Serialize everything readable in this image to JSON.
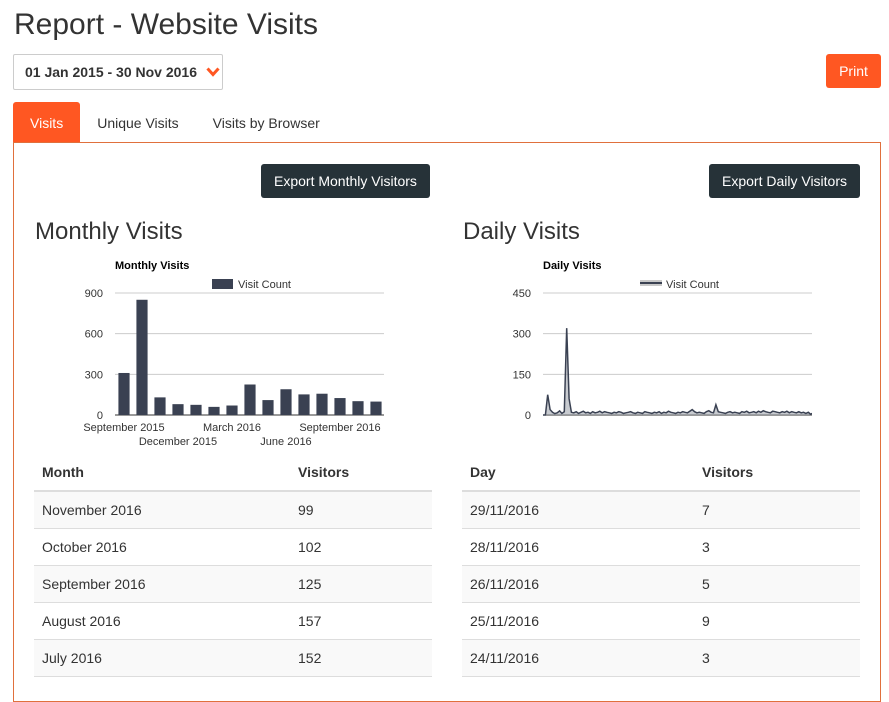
{
  "page": {
    "title": "Report - Website Visits"
  },
  "date_range": {
    "value": "01 Jan 2015 - 30 Nov 2016"
  },
  "print_label": "Print",
  "tabs": [
    {
      "label": "Visits",
      "active": true
    },
    {
      "label": "Unique Visits",
      "active": false
    },
    {
      "label": "Visits by Browser",
      "active": false
    }
  ],
  "exports": {
    "monthly": "Export Monthly Visitors",
    "daily": "Export Daily Visitors"
  },
  "monthly": {
    "section_title": "Monthly Visits",
    "table": {
      "headers": [
        "Month",
        "Visitors"
      ],
      "rows": [
        [
          "November 2016",
          "99"
        ],
        [
          "October 2016",
          "102"
        ],
        [
          "September 2016",
          "125"
        ],
        [
          "August 2016",
          "157"
        ],
        [
          "July 2016",
          "152"
        ]
      ]
    }
  },
  "daily": {
    "section_title": "Daily Visits",
    "table": {
      "headers": [
        "Day",
        "Visitors"
      ],
      "rows": [
        [
          "29/11/2016",
          "7"
        ],
        [
          "28/11/2016",
          "3"
        ],
        [
          "26/11/2016",
          "5"
        ],
        [
          "25/11/2016",
          "9"
        ],
        [
          "24/11/2016",
          "3"
        ]
      ]
    }
  },
  "colors": {
    "accent": "#ff5722",
    "dark_button": "#263238",
    "series": "#3a4152",
    "panel_border": "#e0703d"
  },
  "chart_data": [
    {
      "type": "bar",
      "title": "Monthly Visits",
      "legend": "Visit Count",
      "legend_position": "top",
      "ylim": [
        0,
        900
      ],
      "yticks": [
        "0",
        "300",
        "600",
        "900"
      ],
      "grid": true,
      "xtick_labels": [
        {
          "label": "September 2015",
          "index": 0,
          "row": 0
        },
        {
          "label": "December 2015",
          "index": 3,
          "row": 1
        },
        {
          "label": "March 2016",
          "index": 6,
          "row": 0
        },
        {
          "label": "June 2016",
          "index": 9,
          "row": 1
        },
        {
          "label": "September 2016",
          "index": 12,
          "row": 0
        }
      ],
      "categories": [
        "Sep 2015",
        "Oct 2015",
        "Nov 2015",
        "Dec 2015",
        "Jan 2016",
        "Feb 2016",
        "Mar 2016",
        "Apr 2016",
        "May 2016",
        "Jun 2016",
        "Jul 2016",
        "Aug 2016",
        "Sep 2016",
        "Oct 2016",
        "Nov 2016"
      ],
      "values": [
        310,
        850,
        130,
        80,
        75,
        60,
        70,
        225,
        110,
        190,
        152,
        157,
        125,
        102,
        99
      ]
    },
    {
      "type": "area",
      "title": "Daily Visits",
      "legend": "Visit Count",
      "legend_position": "top",
      "ylim": [
        0,
        450
      ],
      "yticks": [
        "0",
        "150",
        "300",
        "450"
      ],
      "grid": true,
      "x_start": "2015-09-01",
      "x_end": "2016-11-29",
      "values": [
        0,
        0,
        75,
        20,
        10,
        5,
        8,
        15,
        6,
        12,
        320,
        60,
        10,
        8,
        12,
        6,
        10,
        14,
        8,
        10,
        6,
        12,
        8,
        10,
        14,
        8,
        12,
        10,
        8,
        6,
        10,
        8,
        12,
        10,
        6,
        8,
        10,
        12,
        8,
        6,
        10,
        8,
        6,
        12,
        10,
        8,
        6,
        10,
        8,
        12,
        6,
        10,
        8,
        14,
        10,
        8,
        6,
        10,
        8,
        12,
        10,
        8,
        14,
        20,
        12,
        8,
        10,
        8,
        6,
        12,
        16,
        10,
        8,
        38,
        12,
        10,
        8,
        6,
        10,
        12,
        8,
        10,
        8,
        6,
        12,
        10,
        14,
        8,
        10,
        12,
        8,
        14,
        10,
        16,
        12,
        10,
        8,
        14,
        12,
        10,
        8,
        12,
        10,
        14,
        8,
        12,
        10,
        8,
        12,
        8,
        10,
        6,
        10,
        3,
        7
      ]
    }
  ]
}
